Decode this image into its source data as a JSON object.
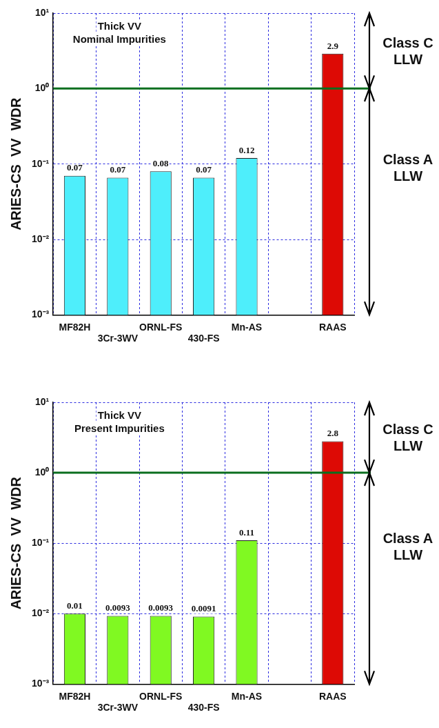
{
  "chart_data": [
    {
      "type": "bar",
      "title": "Thick VV",
      "subtitle": "Nominal Impurities",
      "ylabel": "ARIES-CS  VV  WDR",
      "categories": [
        "MF82H",
        "3Cr-3WV",
        "ORNL-FS",
        "430-FS",
        "Mn-AS",
        null,
        "RAAS"
      ],
      "values": [
        0.07,
        0.066,
        0.08,
        0.066,
        0.12,
        null,
        2.9
      ],
      "value_labels": [
        "0.07",
        "0.07",
        "0.08",
        "0.07",
        "0.12",
        null,
        "2.9"
      ],
      "colors": [
        "#4eeefb",
        "#4eeefb",
        "#4eeefb",
        "#4eeefb",
        "#4eeefb",
        null,
        "#dd0a05"
      ],
      "log": "y",
      "ylim": [
        0.001,
        10
      ],
      "yticks": [
        {
          "value": 0.001,
          "label": "10⁻³"
        },
        {
          "value": 0.01,
          "label": "10⁻²"
        },
        {
          "value": 0.1,
          "label": "10⁻¹"
        },
        {
          "value": 1,
          "label": "10⁰"
        },
        {
          "value": 10,
          "label": "10¹"
        }
      ],
      "grid": true,
      "ref_lines": [
        {
          "axis": "y",
          "value": 1,
          "label": null,
          "color": "#0a6e1e"
        }
      ],
      "annotations": [
        "Class C LLW",
        "Class A LLW"
      ]
    },
    {
      "type": "bar",
      "title": "Thick VV",
      "subtitle": "Present Impurities",
      "ylabel": "ARIES-CS  VV  WDR",
      "categories": [
        "MF82H",
        "3Cr-3WV",
        "ORNL-FS",
        "430-FS",
        "Mn-AS",
        null,
        "RAAS"
      ],
      "values": [
        0.01,
        0.0093,
        0.0093,
        0.0091,
        0.11,
        null,
        2.8
      ],
      "data_labels": true,
      "colors": [
        "#80f922",
        "#80f922",
        "#80f922",
        "#80f922",
        "#80f922",
        null,
        "#dd0a05"
      ],
      "log": "y",
      "ylim": [
        0.001,
        10
      ],
      "yticks": [
        {
          "value": 0.001,
          "label": "10⁻³"
        },
        {
          "value": 0.01,
          "label": "10⁻²"
        },
        {
          "value": 0.1,
          "label": "10⁻¹"
        },
        {
          "value": 1,
          "label": "10⁰"
        },
        {
          "value": 10,
          "label": "10¹"
        }
      ],
      "grid": true,
      "ref_lines": [
        {
          "axis": "y",
          "value": 1,
          "label": null,
          "color": "#0a6e1e"
        }
      ],
      "annotations": [
        "Class C LLW",
        "Class A LLW"
      ]
    }
  ]
}
